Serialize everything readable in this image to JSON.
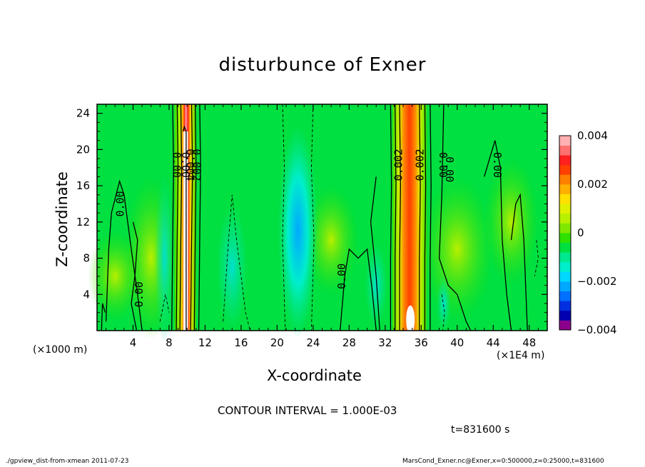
{
  "chart_data": {
    "type": "heatmap",
    "title": "disturbunce of Exner",
    "xlabel": "X-coordinate",
    "ylabel": "Z-coordinate",
    "x_scale_left": "(×1000 m)",
    "x_scale_right": "(×1E4 m)",
    "x_ticks": [
      "4",
      "8",
      "12",
      "16",
      "20",
      "24",
      "28",
      "32",
      "36",
      "40",
      "44",
      "48"
    ],
    "x_tick_values": [
      4,
      8,
      12,
      16,
      20,
      24,
      28,
      32,
      36,
      40,
      44,
      48
    ],
    "y_ticks": [
      "4",
      "8",
      "12",
      "16",
      "20",
      "24"
    ],
    "y_tick_values": [
      4,
      8,
      12,
      16,
      20,
      24
    ],
    "xlim": [
      0,
      50
    ],
    "ylim": [
      0,
      25
    ],
    "colorbar": {
      "ticks": [
        "0.004",
        "0.002",
        "0",
        "−0.002",
        "−0.004"
      ],
      "tick_values": [
        0.004,
        0.002,
        0,
        -0.002,
        -0.004
      ],
      "range": [
        -0.004,
        0.004
      ],
      "colors": [
        "#8b008b",
        "#0000b0",
        "#0030e0",
        "#0070ff",
        "#00a8ff",
        "#00d8ff",
        "#00eecc",
        "#00e890",
        "#00e040",
        "#30e000",
        "#80e800",
        "#b8f000",
        "#e0f000",
        "#ffe000",
        "#ffb000",
        "#ff8000",
        "#ff4000",
        "#ff2020",
        "#ff7070",
        "#ffb0b0"
      ]
    },
    "contour_labels": [
      {
        "text": "0.00"
      },
      {
        "text": "0.00"
      },
      {
        "text": "0.00"
      },
      {
        "text": "0.00"
      },
      {
        "text": "0.004"
      },
      {
        "text": "0.002"
      },
      {
        "text": "0.00"
      },
      {
        "text": "0.002"
      },
      {
        "text": "0.002"
      },
      {
        "text": "0.00"
      },
      {
        "text": "0.00"
      },
      {
        "text": "0.00"
      }
    ],
    "features": [
      {
        "name": "positive-band-left",
        "x_center": 9.8,
        "width": 1.2,
        "peak": 0.0045
      },
      {
        "name": "positive-band-right",
        "x_center": 34.7,
        "width": 1.6,
        "peak": 0.0032
      },
      {
        "name": "negative-band-center",
        "x_center": 22.3,
        "width": 2.2,
        "peak": -0.0015
      },
      {
        "name": "negative-band-mid-left",
        "x_center": 15.0,
        "width": 1.5,
        "peak": -0.0008
      }
    ]
  },
  "contour_interval": "CONTOUR INTERVAL = 1.000E-03",
  "time_label": "t=831600 s",
  "footer_left": "./gpview_dist-from-xmean  2011-07-23",
  "footer_right": "MarsCond_Exner.nc@Exner,x=0:500000,z=0:25000,t=831600"
}
